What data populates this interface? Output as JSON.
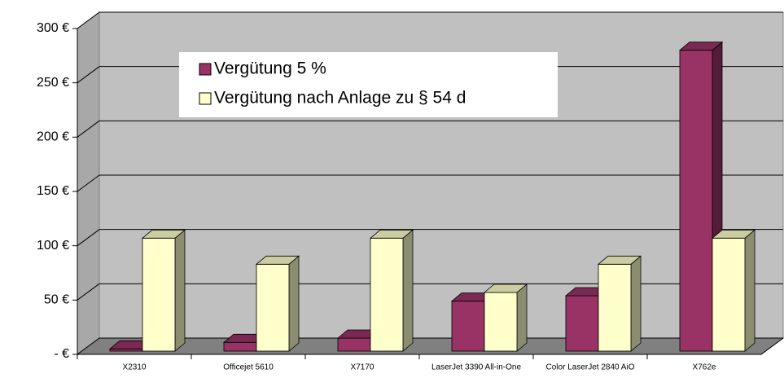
{
  "chart_data": {
    "type": "bar3d",
    "categories": [
      "X2310",
      "Officejet 5610",
      "X7170",
      "LaserJet 3390 All-in-One",
      "Color LaserJet 2840 AiO",
      "X762e"
    ],
    "series": [
      {
        "name": "Vergütung 5 %",
        "color": "#993366",
        "values": [
          2,
          8,
          12,
          46,
          51,
          277
        ]
      },
      {
        "name": "Vergütung nach Anlage zu § 54 d",
        "color": "#ffffcc",
        "values": [
          104,
          80,
          104,
          54,
          80,
          104
        ]
      }
    ],
    "ylim": [
      0,
      300
    ],
    "yticks": [
      {
        "value": 0,
        "label": "- €"
      },
      {
        "value": 50,
        "label": "50 €"
      },
      {
        "value": 100,
        "label": "100 €"
      },
      {
        "value": 150,
        "label": "150 €"
      },
      {
        "value": 200,
        "label": "200 €"
      },
      {
        "value": 250,
        "label": "250 €"
      },
      {
        "value": 300,
        "label": "300 €"
      }
    ],
    "grid": true,
    "legend": "top-left"
  }
}
